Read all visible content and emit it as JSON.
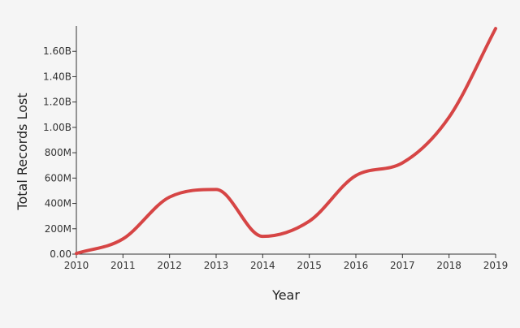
{
  "chart_data": {
    "type": "line",
    "title": "",
    "xlabel": "Year",
    "ylabel": "Total Records Lost",
    "x": [
      2010,
      2011,
      2012,
      2013,
      2014,
      2015,
      2016,
      2017,
      2018,
      2019
    ],
    "xlim": [
      2010,
      2019
    ],
    "ylim": [
      0,
      1800000000
    ],
    "yticks": [
      0,
      200000000,
      400000000,
      600000000,
      800000000,
      1000000000,
      1200000000,
      1400000000,
      1600000000
    ],
    "ytick_labels": [
      "0.00",
      "200M",
      "400M",
      "600M",
      "800M",
      "1.00B",
      "1.20B",
      "1.40B",
      "1.60B"
    ],
    "xtick_labels": [
      "2010",
      "2011",
      "2012",
      "2013",
      "2014",
      "2015",
      "2016",
      "2017",
      "2018",
      "2019"
    ],
    "grid": false,
    "series": [
      {
        "color": "#d64545",
        "values": [
          5000000,
          120000000,
          450000000,
          510000000,
          140000000,
          260000000,
          620000000,
          720000000,
          1080000000,
          1780000000
        ]
      }
    ]
  }
}
